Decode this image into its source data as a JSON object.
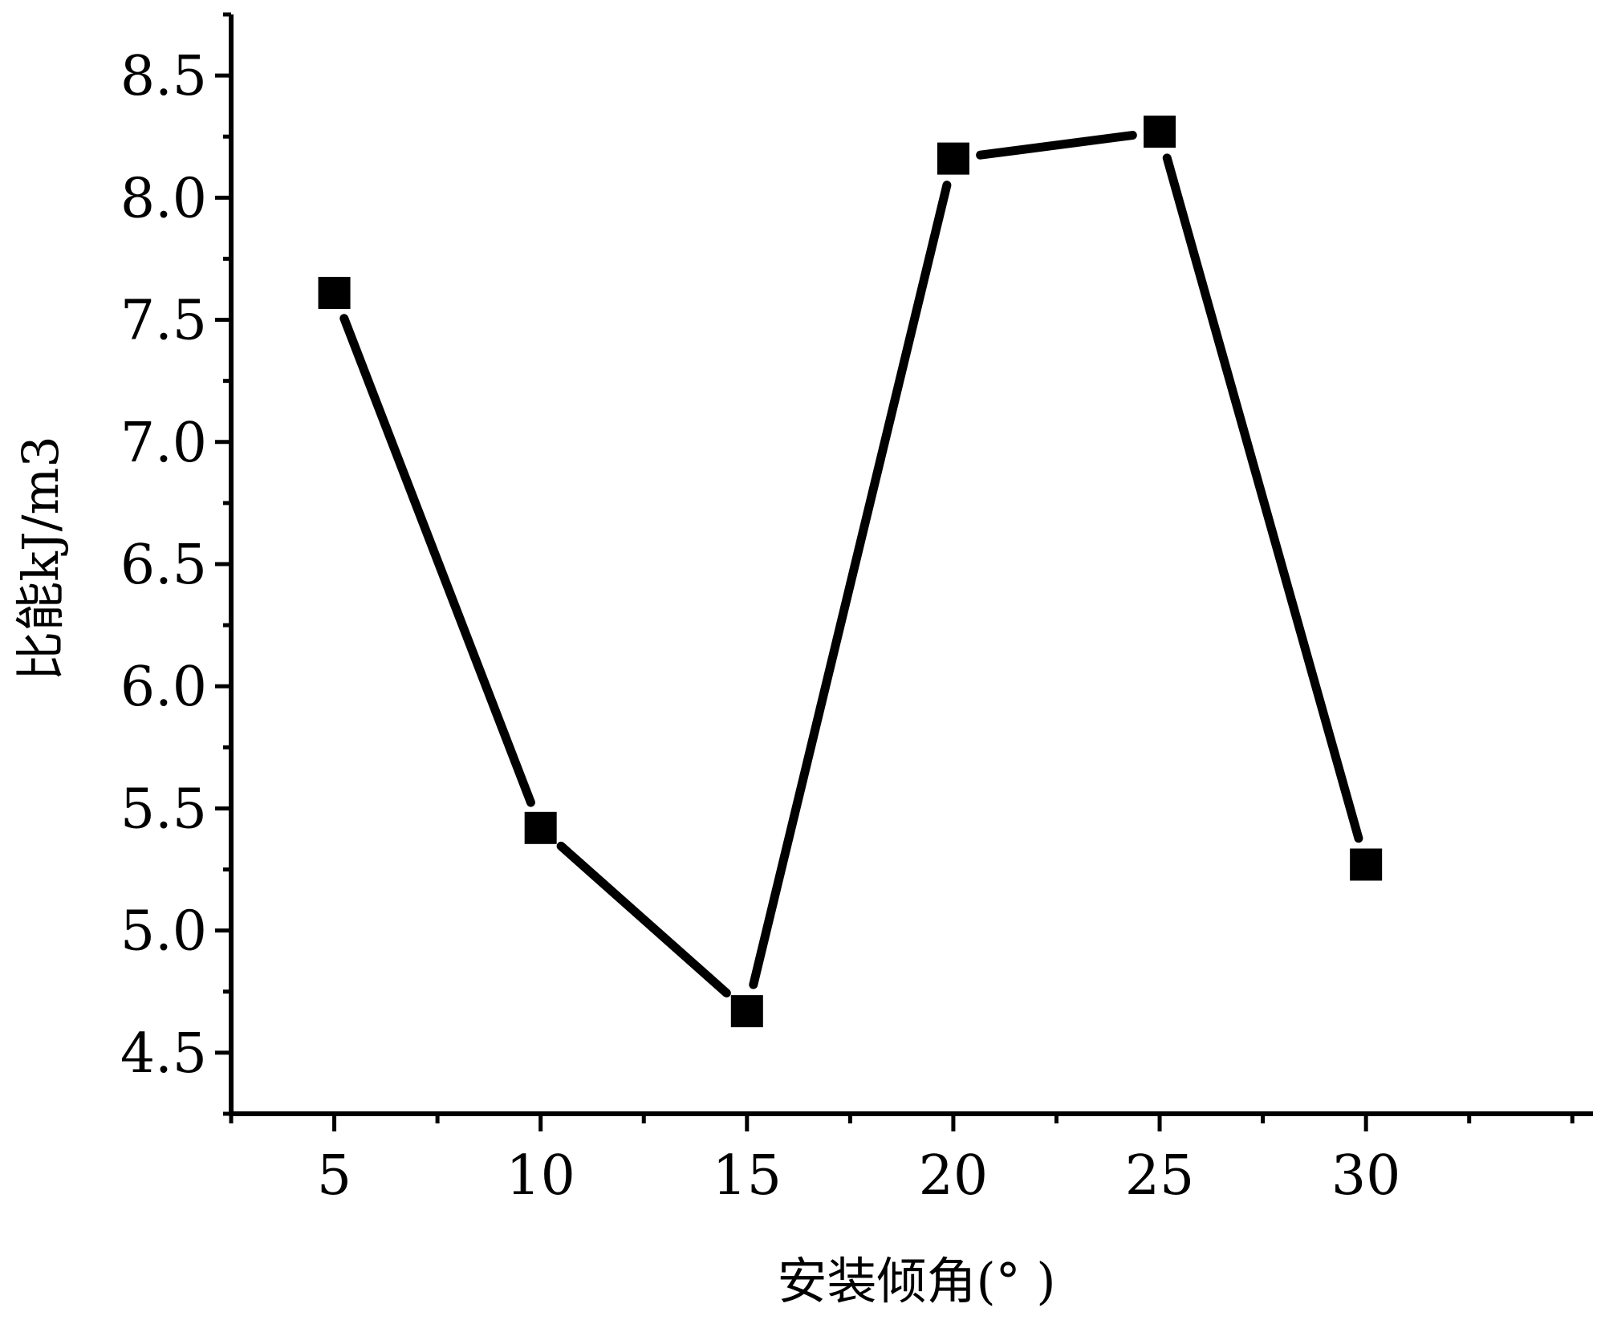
{
  "chart_data": {
    "type": "line",
    "title": "",
    "xlabel": "安装倾角(° )",
    "ylabel": "比能kJ/m3",
    "x": [
      5,
      10,
      15,
      20,
      25,
      30
    ],
    "x_tick_labels": [
      "5",
      "10",
      "15",
      "20",
      "25",
      "30"
    ],
    "y_tick_labels": [
      "4.5",
      "5.0",
      "5.5",
      "6.0",
      "6.5",
      "7.0",
      "7.5",
      "8.0",
      "8.5"
    ],
    "xlim": [
      2.5,
      35.5
    ],
    "ylim": [
      4.25,
      8.75
    ],
    "grid": false,
    "legend": "none",
    "series": [
      {
        "values": [
          7.61,
          5.42,
          4.67,
          8.16,
          8.27,
          5.27
        ],
        "marker": "square",
        "color": "#000000"
      }
    ]
  }
}
